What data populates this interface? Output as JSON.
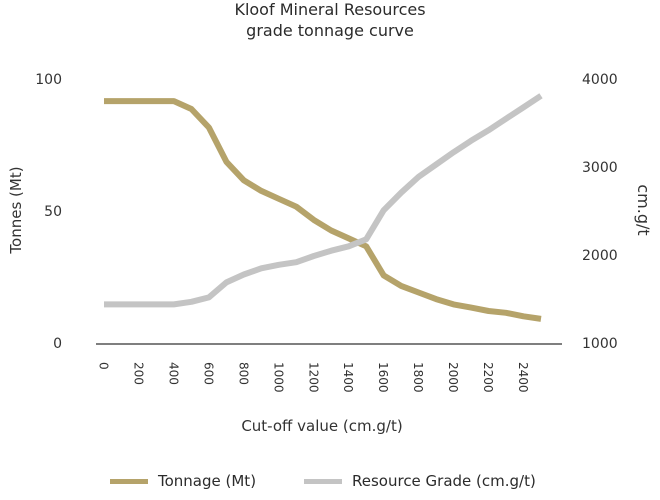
{
  "chart_data": {
    "type": "line",
    "title": "Kloof Mineral Resources",
    "subtitle": "grade tonnage curve",
    "xlabel": "Cut-off value (cm.g/t)",
    "ylabel_left": "Tonnes (Mt)",
    "ylabel_right": "cm.g/t",
    "x_ticks": [
      "0",
      "200",
      "400",
      "600",
      "800",
      "1000",
      "1200",
      "1400",
      "1600",
      "1800",
      "2000",
      "2200",
      "2400"
    ],
    "y_left_ticks": [
      "0",
      "50",
      "100"
    ],
    "y_right_ticks": [
      "1000",
      "2000",
      "3000",
      "4000"
    ],
    "ylim_left": [
      0,
      100
    ],
    "ylim_right": [
      1000,
      4000
    ],
    "xlim": [
      0,
      2500
    ],
    "grid": false,
    "legend": "bottom",
    "x": [
      0,
      100,
      200,
      300,
      400,
      500,
      600,
      700,
      800,
      900,
      1000,
      1100,
      1200,
      1300,
      1400,
      1500,
      1600,
      1700,
      1800,
      1900,
      2000,
      2100,
      2200,
      2300,
      2400,
      2500
    ],
    "series": [
      {
        "name": "Tonnage (Mt)",
        "axis": "left",
        "color": "#b5a36a",
        "values": [
          92,
          92,
          92,
          92,
          92,
          89,
          82,
          69,
          62,
          58,
          55,
          52,
          47,
          43,
          40,
          37,
          26,
          22,
          19.5,
          17,
          15,
          13.8,
          12.5,
          11.8,
          10.5,
          9.5
        ]
      },
      {
        "name": "Resource Grade (cm.g/t)",
        "axis": "right",
        "color": "#c4c4c4",
        "values": [
          1450,
          1450,
          1450,
          1450,
          1450,
          1480,
          1530,
          1700,
          1790,
          1860,
          1900,
          1930,
          2000,
          2060,
          2110,
          2190,
          2520,
          2720,
          2900,
          3040,
          3180,
          3310,
          3430,
          3560,
          3690,
          3820
        ]
      }
    ]
  }
}
